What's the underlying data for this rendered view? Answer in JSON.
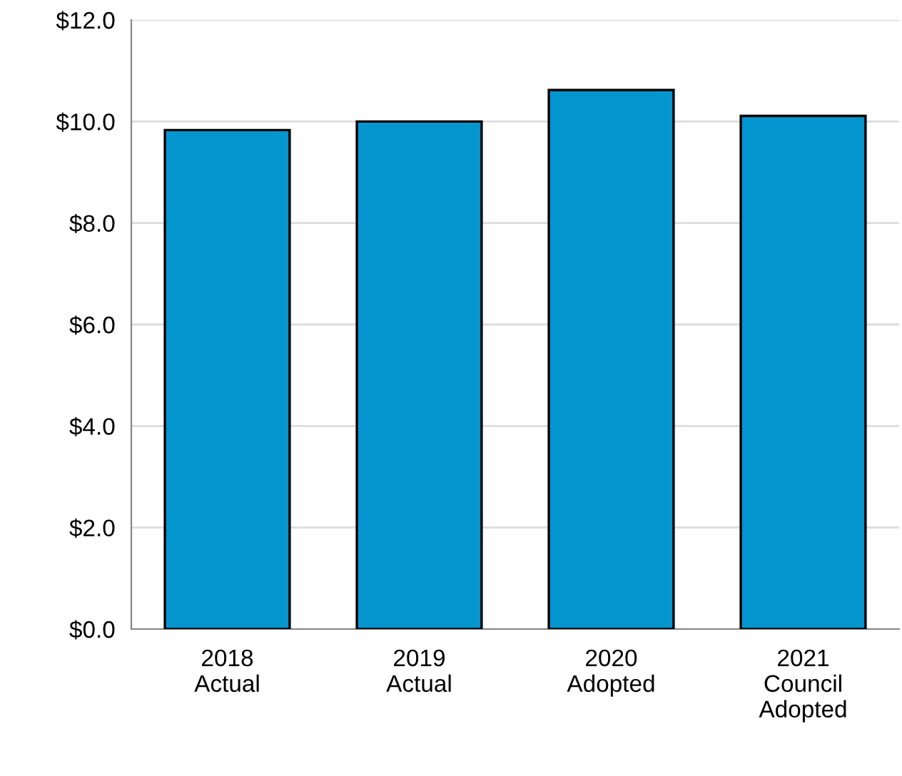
{
  "chart_data": {
    "type": "bar",
    "categories": [
      "2018\nActual",
      "2019\nActual",
      "2020\nAdopted",
      "2021\nCouncil\nAdopted"
    ],
    "values": [
      9.83,
      10.0,
      10.62,
      10.11
    ],
    "color": "#0595cf",
    "ylim": [
      0,
      12
    ],
    "yticks": [
      {
        "value": 0,
        "label": "$0.0"
      },
      {
        "value": 2,
        "label": "$2.0"
      },
      {
        "value": 4,
        "label": "$4.0"
      },
      {
        "value": 6,
        "label": "$6.0"
      },
      {
        "value": 8,
        "label": "$8.0"
      },
      {
        "value": 10,
        "label": "$10.0"
      },
      {
        "value": 12,
        "label": "$12.0"
      }
    ],
    "grid": "y"
  }
}
